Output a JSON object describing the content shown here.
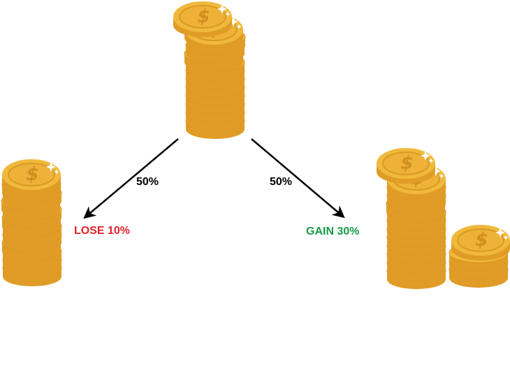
{
  "branches": [
    {
      "probability": "50%",
      "outcome": "LOSE 10%",
      "outcome_color": "#e0222c"
    },
    {
      "probability": "50%",
      "outcome": "GAIN 30%",
      "outcome_color": "#1a9a4a"
    }
  ],
  "colors": {
    "coin_gold": "#eeb238",
    "coin_rim": "#e5a22e",
    "coin_face": "#f4c64a",
    "dollar": "#d18f1e",
    "arrow": "#000000"
  },
  "icons": {
    "stack": "coin-stack-icon",
    "dollar": "dollar-sign-icon",
    "sparkle": "sparkle-icon"
  }
}
